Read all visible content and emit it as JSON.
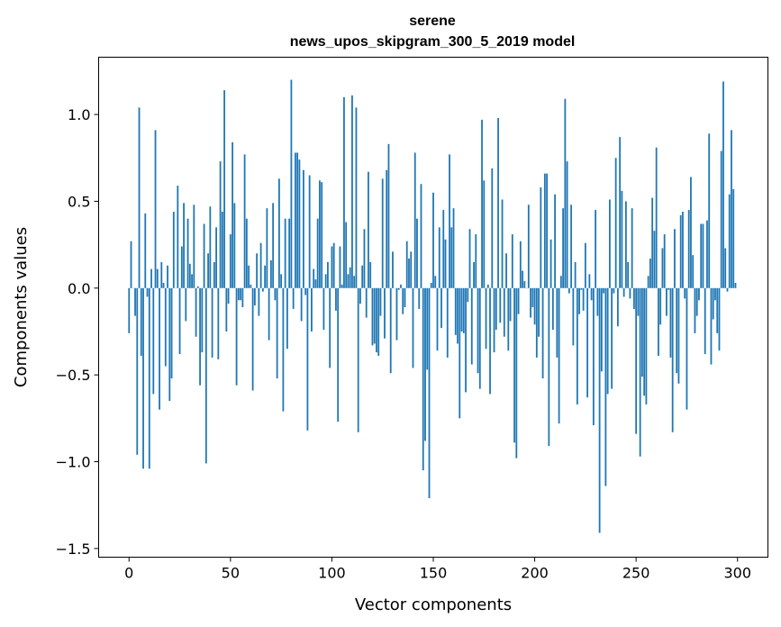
{
  "chart_data": {
    "type": "bar",
    "title": "serene",
    "subtitle": "news_upos_skipgram_300_5_2019 model",
    "xlabel": "Vector components",
    "ylabel": "Components values",
    "xlim": [
      -15,
      315
    ],
    "ylim": [
      -1.55,
      1.33
    ],
    "xticks": [
      0,
      50,
      100,
      150,
      200,
      250,
      300
    ],
    "xtick_labels": [
      "0",
      "50",
      "100",
      "150",
      "200",
      "250",
      "300"
    ],
    "yticks": [
      -1.5,
      -1.0,
      -0.5,
      0.0,
      0.5,
      1.0
    ],
    "ytick_labels": [
      "−1.5",
      "−1.0",
      "−0.5",
      "0.0",
      "0.5",
      "1.0"
    ],
    "grid": false,
    "bar_color": "#1f77b4",
    "values": [
      -0.26,
      0.27,
      0.0,
      -0.16,
      -0.96,
      1.04,
      -0.39,
      -1.04,
      0.43,
      -0.05,
      -1.04,
      0.11,
      -0.61,
      0.91,
      0.11,
      -0.7,
      0.15,
      0.03,
      -0.45,
      0.13,
      -0.65,
      -0.52,
      0.44,
      0.0,
      0.59,
      -0.38,
      0.24,
      0.49,
      -0.19,
      0.4,
      0.14,
      0.08,
      0.48,
      -0.28,
      0.01,
      -0.56,
      -0.37,
      0.37,
      -1.01,
      0.2,
      0.47,
      -0.4,
      0.15,
      0.35,
      -0.41,
      0.73,
      0.44,
      1.14,
      -0.25,
      -0.09,
      0.31,
      0.84,
      0.49,
      -0.56,
      -0.07,
      -0.07,
      -0.11,
      0.77,
      0.4,
      0.13,
      0.02,
      -0.59,
      -0.1,
      0.2,
      -0.16,
      0.26,
      -0.02,
      0.13,
      0.46,
      -0.3,
      0.16,
      0.49,
      -0.07,
      -0.52,
      0.63,
      0.08,
      -0.71,
      0.4,
      -0.35,
      0.4,
      1.2,
      -0.12,
      0.78,
      0.78,
      0.74,
      -0.19,
      0.68,
      -0.04,
      -0.82,
      0.65,
      -0.25,
      0.11,
      0.05,
      0.4,
      0.62,
      0.61,
      -0.24,
      0.08,
      0.15,
      -0.46,
      0.24,
      0.26,
      -0.13,
      -0.77,
      0.24,
      0.02,
      1.1,
      0.38,
      0.08,
      0.12,
      1.11,
      0.07,
      1.04,
      -0.83,
      -0.09,
      0.13,
      0.34,
      -0.17,
      0.67,
      0.15,
      -0.33,
      -0.32,
      -0.37,
      -0.39,
      -0.16,
      0.63,
      -0.29,
      0.68,
      0.83,
      -0.49,
      0.21,
      0.0,
      -0.3,
      -0.01,
      0.02,
      -0.15,
      -0.11,
      0.27,
      0.17,
      0.21,
      -0.46,
      0.78,
      0.4,
      -0.12,
      0.6,
      -1.05,
      -0.88,
      -0.47,
      -1.21,
      0.03,
      0.55,
      0.07,
      -0.36,
      0.35,
      -0.23,
      0.45,
      0.28,
      -0.4,
      0.77,
      0.35,
      0.46,
      -0.27,
      -0.32,
      -0.75,
      -0.25,
      -0.26,
      -0.6,
      -0.08,
      0.34,
      -0.44,
      0.15,
      0.31,
      -0.49,
      -0.58,
      0.97,
      0.62,
      -0.35,
      0.02,
      -0.61,
      0.69,
      -0.37,
      -0.24,
      0.98,
      -0.2,
      0.51,
      -0.28,
      0.2,
      -0.36,
      -0.19,
      0.31,
      -0.89,
      -0.98,
      -0.15,
      0.27,
      0.1,
      0.04,
      0.0,
      0.48,
      -0.17,
      -0.11,
      -0.21,
      -0.4,
      -0.28,
      0.58,
      -0.52,
      0.66,
      0.66,
      -0.91,
      0.28,
      -0.24,
      0.54,
      -0.4,
      -0.78,
      0.07,
      0.46,
      1.09,
      0.73,
      -0.03,
      0.48,
      -0.33,
      0.15,
      -0.67,
      -0.15,
      -0.01,
      -0.13,
      0.26,
      -0.63,
      0.08,
      -0.07,
      -0.79,
      0.45,
      -0.16,
      -1.41,
      -0.48,
      -0.03,
      -1.14,
      -0.61,
      0.51,
      -0.58,
      -0.03,
      0.75,
      -0.22,
      0.87,
      0.56,
      -0.05,
      0.5,
      0.15,
      -0.06,
      0.46,
      -0.12,
      -0.84,
      -0.16,
      -0.97,
      -0.51,
      -0.62,
      -0.67,
      0.07,
      0.17,
      0.52,
      0.33,
      0.81,
      -0.39,
      -0.21,
      0.23,
      0.31,
      -0.16,
      -0.01,
      -0.4,
      -0.83,
      0.34,
      -0.49,
      -0.55,
      0.42,
      0.44,
      -0.06,
      -0.7,
      0.45,
      0.64,
      0.19,
      -0.26,
      -0.16,
      -0.07,
      0.37,
      0.37,
      -0.38,
      0.39,
      0.89,
      -0.44,
      -0.18,
      -0.07,
      -0.26,
      -0.36,
      0.79,
      1.19,
      0.23,
      -0.02,
      0.54,
      0.91,
      0.57,
      0.03
    ]
  }
}
